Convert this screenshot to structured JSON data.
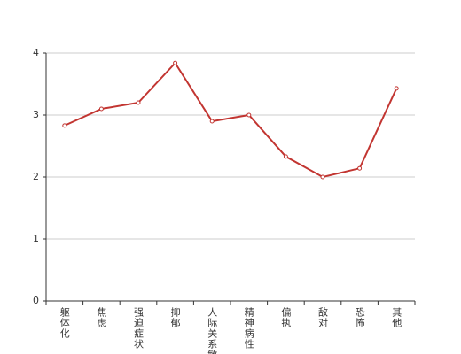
{
  "chart_data": {
    "type": "line",
    "categories": [
      "躯体化",
      "焦虑",
      "强迫症状",
      "抑郁",
      "人际关系敏感",
      "精神病性",
      "偏执",
      "敌对",
      "恐怖",
      "其他"
    ],
    "series": [
      {
        "color": "#c23531",
        "values": [
          2.83,
          3.1,
          3.2,
          3.84,
          2.9,
          3.0,
          2.33,
          2.0,
          2.14,
          3.43
        ]
      }
    ],
    "ylim": [
      0,
      4
    ],
    "yticks": [
      0,
      1,
      2,
      3,
      4
    ],
    "grid": true
  }
}
